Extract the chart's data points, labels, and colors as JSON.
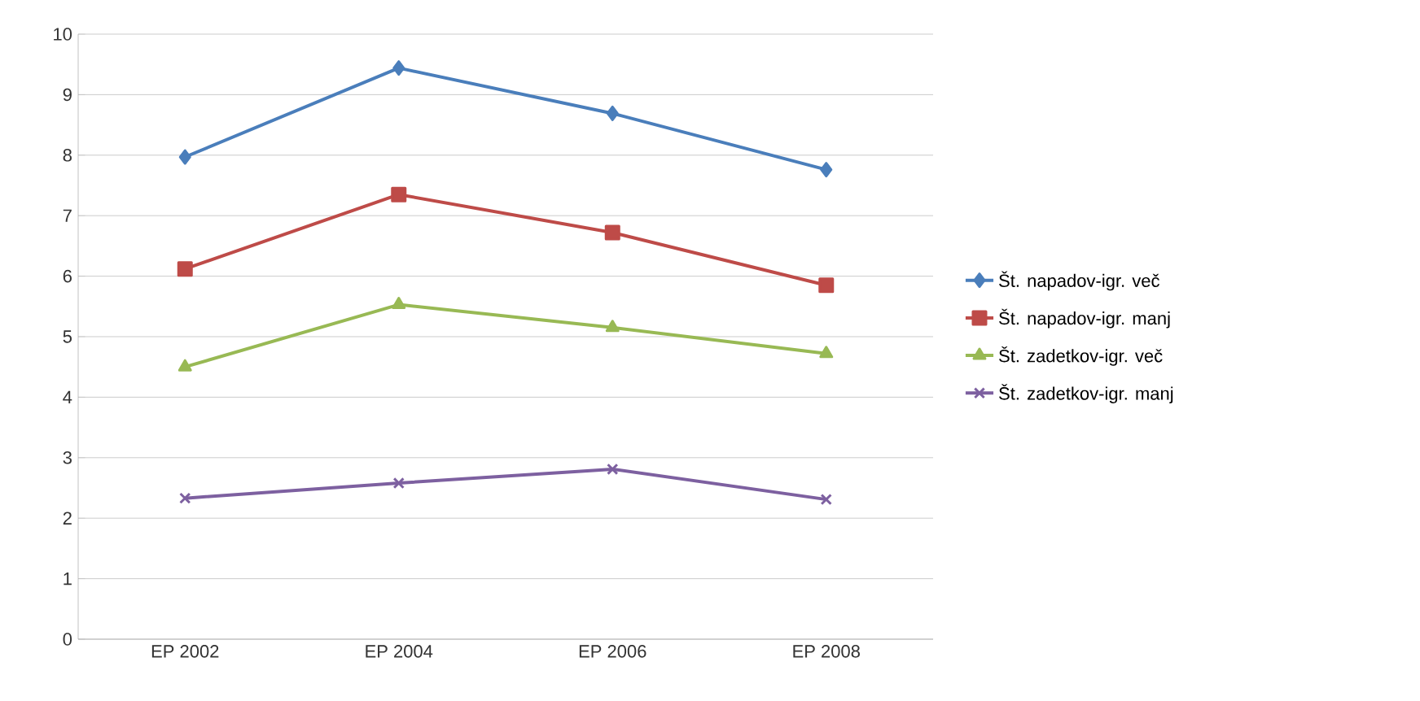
{
  "chart_data": {
    "type": "line",
    "categories": [
      "EP 2002",
      "EP 2004",
      "EP 2006",
      "EP 2008"
    ],
    "ylim": [
      0,
      10
    ],
    "yticks": [
      0,
      1,
      2,
      3,
      4,
      5,
      6,
      7,
      8,
      9,
      10
    ],
    "grid": "y",
    "legend": "right",
    "series": [
      {
        "name": "Št. napadov-igr. več",
        "color": "#4a7ebb",
        "marker": "diamond",
        "values": [
          7.97,
          9.44,
          8.69,
          7.76
        ]
      },
      {
        "name": "Št. napadov-igr. manj",
        "color": "#be4b48",
        "marker": "square",
        "values": [
          6.12,
          7.35,
          6.72,
          5.85
        ]
      },
      {
        "name": "Št. zadetkov-igr. več",
        "color": "#98b954",
        "marker": "triangle",
        "values": [
          4.5,
          5.53,
          5.15,
          4.72
        ]
      },
      {
        "name": "Št. zadetkov-igr. manj",
        "color": "#7d60a0",
        "marker": "cross",
        "values": [
          2.33,
          2.58,
          2.81,
          2.31
        ]
      }
    ]
  }
}
